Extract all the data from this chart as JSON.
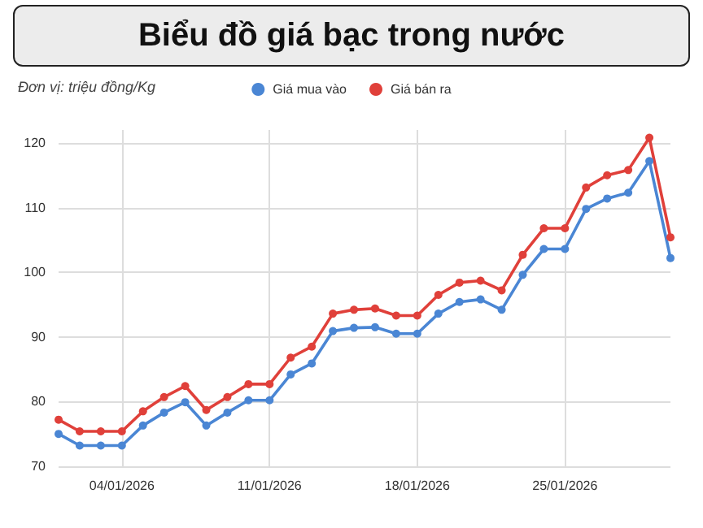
{
  "chart_data": {
    "type": "line",
    "title": "Biểu đồ giá bạc trong nước",
    "subtitle": "Đơn vị: triệu đồng/Kg",
    "x": [
      "2026-01-01",
      "2026-01-02",
      "2026-01-03",
      "2026-01-04",
      "2026-01-05",
      "2026-01-06",
      "2026-01-07",
      "2026-01-08",
      "2026-01-09",
      "2026-01-10",
      "2026-01-11",
      "2026-01-12",
      "2026-01-13",
      "2026-01-14",
      "2026-01-15",
      "2026-01-16",
      "2026-01-17",
      "2026-01-18",
      "2026-01-19",
      "2026-01-20",
      "2026-01-21",
      "2026-01-22",
      "2026-01-23",
      "2026-01-24",
      "2026-01-25",
      "2026-01-26",
      "2026-01-27",
      "2026-01-28",
      "2026-01-29",
      "2026-01-30"
    ],
    "series": [
      {
        "name": "Giá mua vào",
        "color": "#4a86d4",
        "values": [
          75.0,
          73.2,
          73.2,
          73.2,
          76.3,
          78.3,
          79.9,
          76.3,
          78.3,
          80.2,
          80.2,
          84.2,
          85.9,
          90.9,
          91.4,
          91.5,
          90.5,
          90.5,
          93.6,
          95.4,
          95.8,
          94.2,
          99.6,
          103.6,
          103.6,
          109.8,
          111.4,
          112.3,
          117.2,
          102.2
        ]
      },
      {
        "name": "Giá bán ra",
        "color": "#e0403a",
        "values": [
          77.2,
          75.4,
          75.4,
          75.4,
          78.5,
          80.7,
          82.4,
          78.7,
          80.7,
          82.7,
          82.7,
          86.8,
          88.5,
          93.6,
          94.2,
          94.4,
          93.3,
          93.3,
          96.5,
          98.4,
          98.7,
          97.2,
          102.7,
          106.8,
          106.8,
          113.1,
          115.0,
          115.8,
          120.8,
          105.4
        ]
      }
    ],
    "xlim": [
      "2026-01-01",
      "2026-01-30"
    ],
    "xticks": [
      {
        "value": "2026-01-04",
        "label": "04/01/2026"
      },
      {
        "value": "2026-01-11",
        "label": "11/01/2026"
      },
      {
        "value": "2026-01-18",
        "label": "18/01/2026"
      },
      {
        "value": "2026-01-25",
        "label": "25/01/2026"
      }
    ],
    "ylim": [
      70,
      122
    ],
    "yticks": [
      70,
      80,
      90,
      100,
      110,
      120
    ],
    "grid": true,
    "legend": "top",
    "marker": "circle",
    "line_style": "solid"
  }
}
